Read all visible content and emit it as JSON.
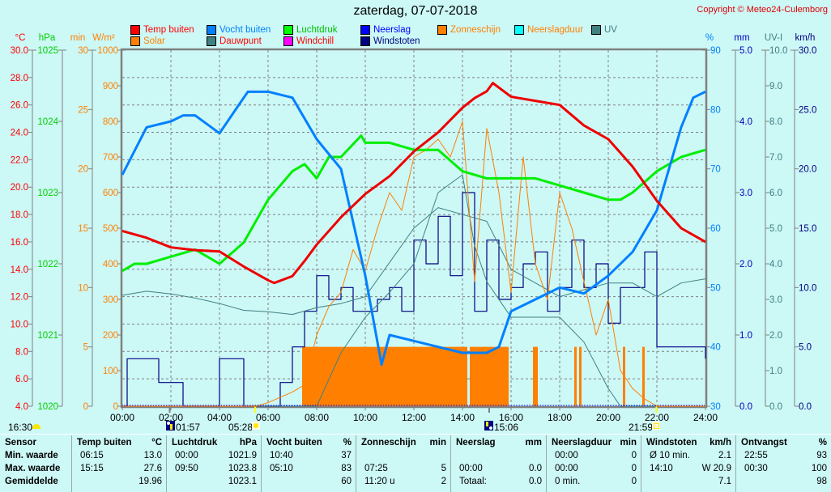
{
  "title": "zaterdag, 07-07-2018",
  "copyright": "Copyright © Meteo24-Culemborg",
  "legend": [
    {
      "label": "Temp buiten",
      "color": "#ff0000",
      "text_color": "#ff0000"
    },
    {
      "label": "Solar",
      "color": "#ff8000",
      "text_color": "#ff8000"
    },
    {
      "label": "Vocht buiten",
      "color": "#0080ff",
      "text_color": "#0080ff"
    },
    {
      "label": "Dauwpunt",
      "color": "#408080",
      "text_color": "#ff0000"
    },
    {
      "label": "Luchtdruk",
      "color": "#00ff00",
      "text_color": "#00c000"
    },
    {
      "label": "Windchill",
      "color": "#ff00ff",
      "text_color": "#ff0000"
    },
    {
      "label": "Neerslag",
      "color": "#0000ff",
      "text_color": "#0000ff"
    },
    {
      "label": "Windstoten",
      "color": "#000080",
      "text_color": "#000080"
    },
    {
      "label": "Zonneschijn",
      "color": "#ff8000",
      "text_color": "#ff8000"
    },
    {
      "label": "Neerslagduur",
      "color": "#00ffff",
      "text_color": "#ff8000"
    },
    {
      "label": "UV",
      "color": "#408080",
      "text_color": "#408080"
    }
  ],
  "axes": {
    "temp": {
      "unit": "°C",
      "color": "#ff0000",
      "ticks": [
        "30.0",
        "28.0",
        "26.0",
        "24.0",
        "22.0",
        "20.0",
        "18.0",
        "16.0",
        "14.0",
        "12.0",
        "10.0",
        "8.0",
        "6.0",
        "4.0"
      ]
    },
    "pressure": {
      "unit": "hPa",
      "color": "#00d000",
      "ticks": [
        "1025",
        "1024",
        "1023",
        "1022",
        "1021",
        "1020"
      ]
    },
    "minutes": {
      "unit": "min",
      "color": "#ff8000",
      "ticks": [
        "30",
        "25",
        "20",
        "15",
        "10",
        "5",
        "0"
      ]
    },
    "solar": {
      "unit": "W/m²",
      "color": "#ff8000",
      "ticks": [
        "1000",
        "900",
        "800",
        "700",
        "600",
        "500",
        "400",
        "300",
        "200",
        "100",
        "0"
      ]
    },
    "humidity": {
      "unit": "%",
      "color": "#0080ff",
      "ticks": [
        "90",
        "80",
        "70",
        "60",
        "50",
        "40",
        "30"
      ]
    },
    "rain": {
      "unit": "mm",
      "color": "#0000c0",
      "ticks": [
        "5.0",
        "4.0",
        "3.0",
        "2.0",
        "1.0",
        "0.0"
      ]
    },
    "uv": {
      "unit": "UV-I",
      "color": "#408080",
      "ticks": [
        "10.0",
        "9.0",
        "8.0",
        "7.0",
        "6.0",
        "5.0",
        "4.0",
        "3.0",
        "2.0",
        "1.0",
        "0.0"
      ]
    },
    "wind": {
      "unit": "km/h",
      "color": "#000080",
      "ticks": [
        "30.0",
        "25.0",
        "20.0",
        "15.0",
        "10.0",
        "5.0",
        "0.0"
      ]
    },
    "time": {
      "ticks": [
        "00:00",
        "02:00",
        "04:00",
        "06:00",
        "08:00",
        "10:00",
        "12:00",
        "14:00",
        "16:00",
        "18:00",
        "20:00",
        "22:00",
        "24:00"
      ]
    }
  },
  "astro": {
    "moonset": "16:30",
    "moonrise": "01:57",
    "sunrise": "05:28",
    "moon_transit": "15:06",
    "sunset": "21:59"
  },
  "chart_data": {
    "type": "line",
    "title": "zaterdag, 07-07-2018",
    "xlabel": "",
    "x_range": [
      "00:00",
      "24:00"
    ],
    "grid": true,
    "legend_position": "top",
    "series": [
      {
        "name": "Temp buiten",
        "unit": "°C",
        "ylim": [
          4,
          30
        ],
        "x": [
          0,
          1,
          2,
          3,
          4,
          5,
          6,
          6.25,
          7,
          7.5,
          8,
          9,
          10,
          11,
          12,
          13,
          14,
          14.5,
          15,
          15.25,
          16,
          17,
          18,
          19,
          20,
          21,
          22,
          23,
          24
        ],
        "values": [
          16.8,
          16.3,
          15.6,
          15.4,
          15.3,
          14.2,
          13.2,
          13.0,
          13.5,
          14.6,
          15.8,
          17.8,
          19.5,
          20.8,
          22.6,
          24.0,
          25.8,
          26.5,
          27.0,
          27.6,
          26.6,
          26.3,
          26.0,
          24.5,
          23.5,
          21.5,
          19.0,
          17.0,
          16.0
        ]
      },
      {
        "name": "Vocht buiten",
        "unit": "%",
        "ylim": [
          30,
          90
        ],
        "x": [
          0,
          1,
          2,
          2.5,
          3,
          4,
          5,
          5.17,
          6,
          7,
          8,
          9,
          10,
          10.67,
          11,
          12,
          13,
          14,
          15,
          15.5,
          16,
          17,
          18,
          19,
          20,
          21,
          22,
          23,
          23.5,
          24
        ],
        "values": [
          69,
          77,
          78,
          79,
          79,
          76,
          82,
          83,
          83,
          82,
          75,
          70,
          52,
          37,
          42,
          41,
          40,
          39,
          39,
          40,
          46,
          48,
          50,
          49,
          52,
          56,
          63,
          77,
          82,
          83
        ]
      },
      {
        "name": "Luchtdruk",
        "unit": "hPa",
        "ylim": [
          1020,
          1025
        ],
        "x": [
          0,
          0.5,
          1,
          2,
          3,
          4,
          5,
          6,
          7,
          7.5,
          8,
          8.5,
          9,
          9.83,
          10,
          11,
          12,
          13,
          14,
          15,
          16,
          17,
          18,
          19,
          20,
          20.5,
          21,
          22,
          23,
          24
        ],
        "values": [
          1021.9,
          1022.0,
          1022.0,
          1022.1,
          1022.2,
          1022.0,
          1022.3,
          1022.9,
          1023.3,
          1023.4,
          1023.2,
          1023.5,
          1023.5,
          1023.8,
          1023.7,
          1023.7,
          1023.6,
          1023.6,
          1023.3,
          1023.2,
          1023.2,
          1023.2,
          1023.1,
          1023.0,
          1022.9,
          1022.9,
          1023.0,
          1023.3,
          1023.5,
          1023.6
        ]
      },
      {
        "name": "Dauwpunt",
        "unit": "°C",
        "ylim": [
          4,
          30
        ],
        "x": [
          0,
          1,
          2,
          3,
          4,
          5,
          6,
          7,
          8,
          9,
          10,
          11,
          12,
          13,
          14,
          15,
          16,
          17,
          18,
          19,
          20,
          21,
          22,
          23,
          24
        ],
        "values": [
          12.1,
          12.4,
          12.2,
          11.9,
          11.5,
          11.0,
          10.9,
          10.7,
          11.2,
          11.5,
          12.0,
          14.5,
          17.0,
          18.5,
          18.0,
          17.5,
          14.0,
          13.0,
          12.0,
          12.5,
          13.0,
          13.0,
          12.0,
          13.0,
          13.3
        ]
      },
      {
        "name": "Solar",
        "unit": "W/m²",
        "ylim": [
          0,
          1000
        ],
        "x": [
          0,
          5.5,
          6,
          7,
          7.5,
          8,
          8.5,
          9,
          9.5,
          10,
          10.5,
          11,
          11.5,
          12,
          12.5,
          13,
          13.5,
          14,
          14.5,
          15,
          15.5,
          16,
          16.5,
          17,
          17.5,
          18,
          18.5,
          19,
          19.5,
          20,
          20.5,
          21,
          21.5,
          22,
          24
        ],
        "values": [
          0,
          0,
          10,
          40,
          60,
          200,
          280,
          320,
          440,
          380,
          500,
          600,
          550,
          700,
          720,
          750,
          700,
          800,
          350,
          780,
          600,
          320,
          700,
          400,
          300,
          600,
          500,
          350,
          200,
          300,
          100,
          50,
          20,
          0,
          0
        ]
      },
      {
        "name": "UV",
        "unit": "UV-I",
        "ylim": [
          0,
          10
        ],
        "x": [
          0,
          7,
          8,
          9,
          10,
          11,
          12,
          13,
          14,
          14.5,
          15,
          16,
          17,
          18,
          19,
          20,
          20.5,
          21,
          24
        ],
        "values": [
          0,
          0,
          0,
          1.5,
          2.5,
          3.2,
          4.0,
          6.0,
          6.5,
          4.5,
          3.5,
          2.5,
          2.5,
          2.5,
          1.8,
          0.5,
          0,
          0,
          0
        ]
      },
      {
        "name": "Windstoten",
        "unit": "km/h",
        "ylim": [
          0,
          30
        ],
        "x": [
          0,
          0.2,
          0.5,
          1,
          1.5,
          2,
          2.5,
          3,
          3.5,
          4,
          4.5,
          5,
          5.5,
          6,
          6.5,
          7,
          7.5,
          8,
          8.5,
          9,
          9.5,
          10,
          10.5,
          11,
          11.5,
          12,
          12.5,
          13,
          13.5,
          14,
          14.5,
          15,
          15.5,
          16,
          16.5,
          17,
          17.5,
          18,
          18.5,
          19,
          19.5,
          20,
          20.5,
          21,
          21.5,
          22,
          22.5,
          23,
          23.5,
          24
        ],
        "values": [
          0,
          4,
          4,
          4,
          2,
          2,
          0,
          0,
          0,
          4,
          4,
          0,
          0,
          0,
          2,
          5,
          8,
          11,
          9,
          10,
          8,
          8,
          9,
          10,
          8,
          14,
          12,
          16,
          11,
          18,
          8,
          14,
          9,
          10,
          12,
          13,
          8,
          10,
          14,
          10,
          12,
          7,
          10,
          10,
          13,
          5,
          5,
          5,
          5,
          4
        ]
      },
      {
        "name": "Zonneschijn",
        "unit": "min",
        "ylim": [
          0,
          30
        ],
        "x": [
          0,
          7.35,
          7.4,
          14.1,
          14.2,
          14.3,
          15.8,
          15.9,
          16.8,
          16.9,
          17.1,
          17.2,
          18.6,
          18.7,
          18.8,
          18.9,
          20.6,
          20.7,
          21.3,
          21.4,
          21.5,
          24
        ],
        "values": [
          0,
          0,
          5,
          5,
          0,
          5,
          5,
          0,
          0,
          5,
          0,
          0,
          5,
          0,
          5,
          0,
          5,
          0,
          0,
          5,
          0,
          0
        ]
      },
      {
        "name": "Neerslag",
        "unit": "mm",
        "ylim": [
          0,
          5
        ],
        "x": [
          0,
          24
        ],
        "values": [
          0,
          0
        ]
      },
      {
        "name": "Neerslagduur",
        "unit": "min",
        "ylim": [
          0,
          30
        ],
        "x": [
          0,
          24
        ],
        "values": [
          0,
          0
        ]
      }
    ]
  },
  "table": {
    "columns": [
      {
        "header": "Sensor",
        "unit": "",
        "rows": [
          [
            "Min. waarde",
            ""
          ],
          [
            "Max. waarde",
            ""
          ],
          [
            "Gemiddelde",
            ""
          ]
        ]
      },
      {
        "header": "Temp buiten",
        "unit": "°C",
        "rows": [
          [
            "06:15",
            "13.0"
          ],
          [
            "15:15",
            "27.6"
          ],
          [
            "",
            "19.96"
          ]
        ]
      },
      {
        "header": "Luchtdruk",
        "unit": "hPa",
        "rows": [
          [
            "00:00",
            "1021.9"
          ],
          [
            "09:50",
            "1023.8"
          ],
          [
            "",
            "1023.1"
          ]
        ]
      },
      {
        "header": "Vocht buiten",
        "unit": "%",
        "rows": [
          [
            "10:40",
            "37"
          ],
          [
            "05:10",
            "83"
          ],
          [
            "",
            "60"
          ]
        ]
      },
      {
        "header": "Zonneschijn",
        "unit": "min",
        "rows": [
          [
            "",
            ""
          ],
          [
            "07:25",
            "5"
          ],
          [
            "11:20 u",
            "2"
          ]
        ]
      },
      {
        "header": "Neerslag",
        "unit": "mm",
        "rows": [
          [
            "",
            ""
          ],
          [
            "00:00",
            "0.0"
          ],
          [
            "Totaal:",
            "0.0"
          ]
        ]
      },
      {
        "header": "Neerslagduur",
        "unit": "min",
        "rows": [
          [
            "00:00",
            "0"
          ],
          [
            "00:00",
            "0"
          ],
          [
            "0 min.",
            "0"
          ]
        ]
      },
      {
        "header": "Windstoten",
        "unit": "km/h",
        "rows": [
          [
            "Ø 10 min.",
            "2.1"
          ],
          [
            "14:10",
            "W 20.9"
          ],
          [
            "",
            "7.1"
          ]
        ]
      },
      {
        "header": "Ontvangst",
        "unit": "%",
        "rows": [
          [
            "22:55",
            "93"
          ],
          [
            "00:30",
            "100"
          ],
          [
            "",
            "98"
          ]
        ]
      }
    ]
  }
}
